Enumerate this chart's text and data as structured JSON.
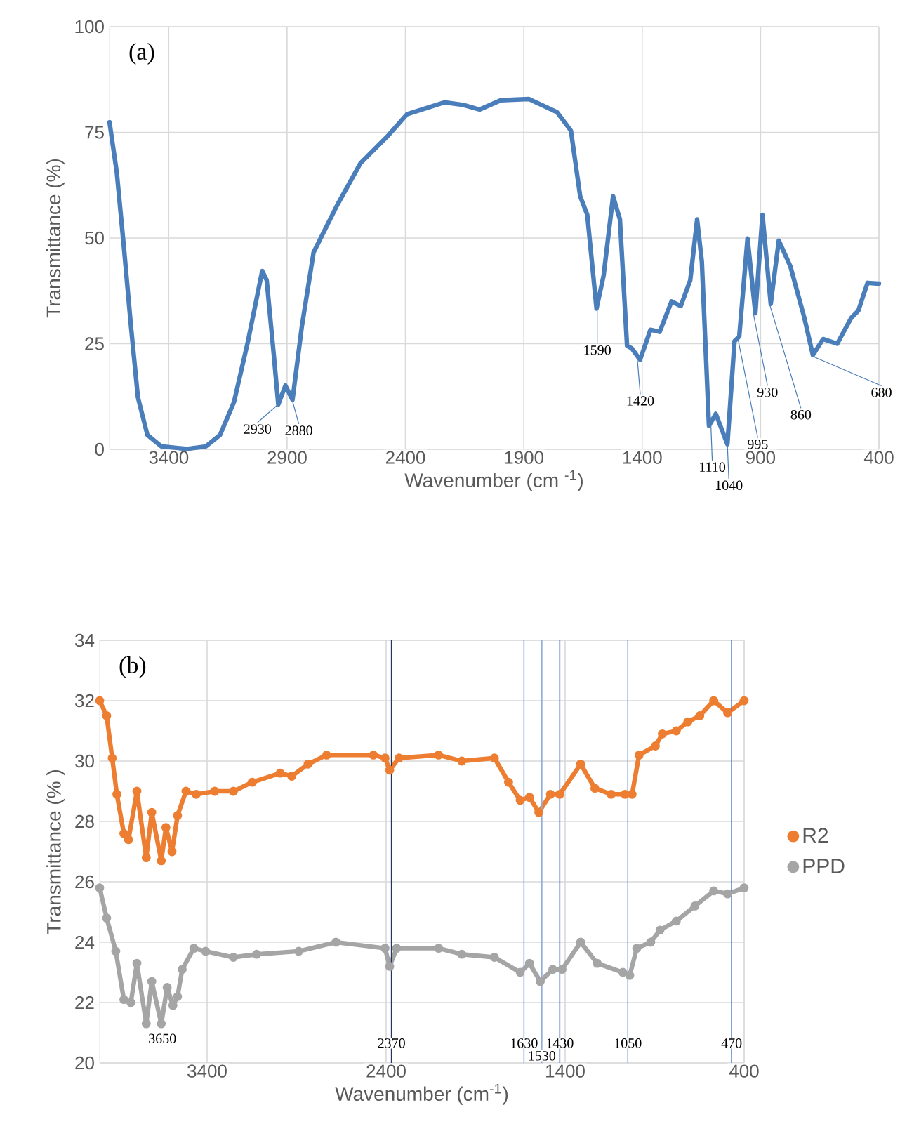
{
  "chart_data": [
    {
      "type": "line",
      "title": "(a)",
      "xlabel": "Wavenumber (cm $^{-1}$)",
      "ylabel": "Transmittance (%)",
      "color": "#4a7ebb",
      "grid": true,
      "xlim": [
        3650,
        400
      ],
      "xticks": [
        3400,
        2900,
        2400,
        1900,
        1400,
        900,
        400
      ],
      "ylim": [
        0,
        100
      ],
      "yticks": [
        0,
        25,
        50,
        75,
        100
      ],
      "x": [
        3650,
        3619,
        3589,
        3559,
        3530,
        3490,
        3431,
        3322,
        3243,
        3183,
        3124,
        3065,
        3005,
        2986,
        2956,
        2937,
        2907,
        2877,
        2838,
        2788,
        2689,
        2590,
        2472,
        2393,
        2235,
        2156,
        2087,
        1997,
        1879,
        1760,
        1701,
        1662,
        1632,
        1593,
        1563,
        1523,
        1494,
        1464,
        1444,
        1409,
        1365,
        1326,
        1276,
        1237,
        1197,
        1168,
        1148,
        1118,
        1089,
        1040,
        1010,
        990,
        955,
        922,
        892,
        857,
        823,
        774,
        715,
        679,
        636,
        576,
        517,
        487,
        448,
        400
      ],
      "values": [
        77.4,
        65.4,
        47.7,
        28.9,
        12.3,
        3.4,
        0.7,
        0.1,
        0.7,
        3.4,
        11.2,
        25.6,
        42.2,
        40,
        22.3,
        10.6,
        15.1,
        11.7,
        28.9,
        46.6,
        57.7,
        67.7,
        74.3,
        79.3,
        82.1,
        81.5,
        80.4,
        82.6,
        82.9,
        79.8,
        75.4,
        59.9,
        55.5,
        33.3,
        41.1,
        59.9,
        54.4,
        24.5,
        23.9,
        21.2,
        28.3,
        27.8,
        35.0,
        33.9,
        40.0,
        54.4,
        44.4,
        5.6,
        8.4,
        1.2,
        25.6,
        26.7,
        49.9,
        32.2,
        55.5,
        34.4,
        49.4,
        43.3,
        31.1,
        22.3,
        26.1,
        25.0,
        31.1,
        32.8,
        39.4,
        39.2
      ],
      "annotations": [
        {
          "text": "2930",
          "x": 2930,
          "y": 11
        },
        {
          "text": "2880",
          "x": 2880,
          "y": 12
        },
        {
          "text": "1590",
          "x": 1590,
          "y": 33
        },
        {
          "text": "1420",
          "x": 1420,
          "y": 21
        },
        {
          "text": "1110",
          "x": 1110,
          "y": 6
        },
        {
          "text": "1040",
          "x": 1040,
          "y": 1
        },
        {
          "text": "995",
          "x": 995,
          "y": 26
        },
        {
          "text": "930",
          "x": 930,
          "y": 32
        },
        {
          "text": "860",
          "x": 860,
          "y": 34
        },
        {
          "text": "680",
          "x": 680,
          "y": 22
        }
      ]
    },
    {
      "type": "line",
      "title": "(b)",
      "xlabel": "Wavenumber (cm$^{-1}$)",
      "ylabel": "Transmittance (% )",
      "grid": true,
      "legend": "right",
      "marker": "circle",
      "xlim": [
        4000,
        400
      ],
      "xticks": [
        3400,
        2400,
        1400,
        400
      ],
      "ylim": [
        20,
        34
      ],
      "yticks": [
        20,
        22,
        24,
        26,
        28,
        30,
        32,
        34
      ],
      "series": [
        {
          "name": "R2",
          "color": "#ed7d31",
          "x": [
            4000,
            3961,
            3930,
            3904,
            3865,
            3839,
            3792,
            3740,
            3709,
            3656,
            3630,
            3596,
            3565,
            3518,
            3461,
            3357,
            3253,
            3148,
            2992,
            2927,
            2836,
            2732,
            2471,
            2406,
            2380,
            2328,
            2107,
            1977,
            1795,
            1716,
            1651,
            1599,
            1547,
            1482,
            1430,
            1313,
            1234,
            1143,
            1065,
            1026,
            987,
            896,
            857,
            779,
            714,
            648,
            570,
            492,
            400
          ],
          "values": [
            32.0,
            31.5,
            30.1,
            28.9,
            27.6,
            27.4,
            29.0,
            26.8,
            28.3,
            26.7,
            27.8,
            27.0,
            28.2,
            29.0,
            28.9,
            29.0,
            29.0,
            29.3,
            29.6,
            29.5,
            29.9,
            30.2,
            30.2,
            30.1,
            29.7,
            30.1,
            30.2,
            30.0,
            30.1,
            29.3,
            28.7,
            28.8,
            28.3,
            28.9,
            28.9,
            29.9,
            29.1,
            28.9,
            28.9,
            28.9,
            30.2,
            30.5,
            30.9,
            31.0,
            31.3,
            31.5,
            32.0,
            31.6,
            32.0
          ]
        },
        {
          "name": "PPD",
          "color": "#a5a5a5",
          "x": [
            4000,
            3961,
            3910,
            3865,
            3826,
            3792,
            3740,
            3709,
            3656,
            3623,
            3591,
            3565,
            3539,
            3474,
            3409,
            3253,
            3123,
            2888,
            2680,
            2406,
            2380,
            2341,
            2107,
            1977,
            1795,
            1651,
            1599,
            1539,
            1469,
            1417,
            1313,
            1221,
            1078,
            1039,
            1000,
            922,
            870,
            779,
            675,
            570,
            492,
            400
          ],
          "values": [
            25.8,
            24.8,
            23.7,
            22.1,
            22.0,
            23.3,
            21.3,
            22.7,
            21.3,
            22.5,
            21.9,
            22.2,
            23.1,
            23.8,
            23.7,
            23.5,
            23.6,
            23.7,
            24.0,
            23.8,
            23.2,
            23.8,
            23.8,
            23.6,
            23.5,
            23.0,
            23.3,
            22.7,
            23.1,
            23.1,
            24.0,
            23.3,
            23.0,
            22.9,
            23.8,
            24.0,
            24.4,
            24.7,
            25.2,
            25.7,
            25.6,
            25.8
          ]
        }
      ],
      "ref_lines": [
        {
          "axis": "x",
          "value": 2370,
          "label": "2370",
          "color": "#1f3864"
        },
        {
          "axis": "x",
          "value": 1630,
          "label": "1630",
          "color": "#8eaadb"
        },
        {
          "axis": "x",
          "value": 1530,
          "label": "1530",
          "color": "#8eaadb"
        },
        {
          "axis": "x",
          "value": 1430,
          "label": "1430",
          "color": "#4472c4"
        },
        {
          "axis": "x",
          "value": 1050,
          "label": "1050",
          "color": "#8eaadb"
        },
        {
          "axis": "x",
          "value": 470,
          "label": "470",
          "color": "#4472c4"
        }
      ],
      "annotations": [
        {
          "text": "3650",
          "x": 3650,
          "y": 21.3
        }
      ]
    }
  ]
}
